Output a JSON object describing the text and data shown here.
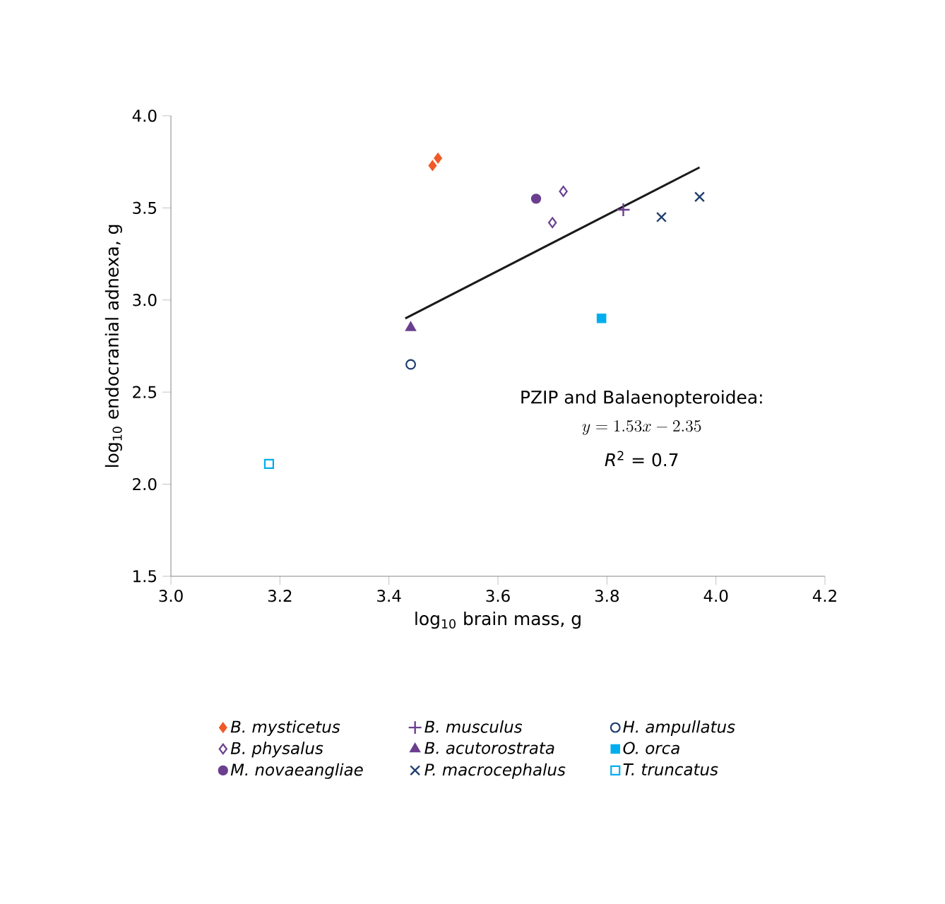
{
  "chart_data": {
    "type": "scatter",
    "xlabel": "log$_{10}$ brain mass, g",
    "ylabel": "log$_{10}$ endocranial adnexa, g",
    "xlim": [
      3.0,
      4.2
    ],
    "xticks": [
      {
        "value": 3.0,
        "label": "3.0"
      },
      {
        "value": 3.2,
        "label": "3.2"
      },
      {
        "value": 3.4,
        "label": "3.4"
      },
      {
        "value": 3.6,
        "label": "3.6"
      },
      {
        "value": 3.8,
        "label": "3.8"
      },
      {
        "value": 4.0,
        "label": "4.0"
      },
      {
        "value": 4.2,
        "label": "4.2"
      }
    ],
    "ylim": [
      1.5,
      4.0
    ],
    "yticks": [
      {
        "value": 1.5,
        "label": "1.5"
      },
      {
        "value": 2.0,
        "label": "2.0"
      },
      {
        "value": 2.5,
        "label": "2.5"
      },
      {
        "value": 3.0,
        "label": "3.0"
      },
      {
        "value": 3.5,
        "label": "3.5"
      },
      {
        "value": 4.0,
        "label": "4.0"
      }
    ],
    "grid": false,
    "legend": "bottom",
    "annotations": [
      "PZIP and Balaenopteroidea:",
      "y = 1.53x - 2.35",
      "*R*$^{2}$ = 0.7"
    ],
    "series": [
      {
        "name": "*B. mysticetus*",
        "color": "#f05a28",
        "marker": "diamond",
        "x": [
          3.49,
          3.48
        ],
        "values": [
          3.77,
          3.73
        ]
      },
      {
        "name": "*B. musculus*",
        "color": "#6b3f8f",
        "marker": "plus",
        "x": [
          3.83
        ],
        "values": [
          3.49
        ]
      },
      {
        "name": "*H. ampullatus*",
        "color": "#1f3d6e",
        "marker": "circle open",
        "x": [
          3.44
        ],
        "values": [
          2.65
        ]
      },
      {
        "name": "*B. physalus*",
        "color": "#6b3f8f",
        "marker": "diamond open",
        "x": [
          3.72,
          3.7
        ],
        "values": [
          3.59,
          3.42
        ]
      },
      {
        "name": "*B. acutorostrata*",
        "color": "#6b3f8f",
        "marker": "triangle",
        "x": [
          3.44
        ],
        "values": [
          2.85
        ]
      },
      {
        "name": "*O. orca*",
        "color": "#00aeef",
        "marker": "square",
        "x": [
          3.79
        ],
        "values": [
          2.9
        ]
      },
      {
        "name": "*M. novaeangliae*",
        "color": "#6b3f8f",
        "marker": "circle",
        "x": [
          3.67
        ],
        "values": [
          3.55
        ]
      },
      {
        "name": "*P. macrocephalus*",
        "color": "#1f3d6e",
        "marker": "cross",
        "x": [
          3.9,
          3.97
        ],
        "values": [
          3.45,
          3.56
        ]
      },
      {
        "name": "*T. truncatus*",
        "color": "#00aeef",
        "marker": "square open",
        "x": [
          3.18
        ],
        "values": [
          2.11
        ]
      },
      {
        "type": "line",
        "color": "#1a1a1a",
        "marker": "none",
        "line_style": "solid",
        "x": [
          3.43,
          3.97
        ],
        "values": [
          2.9,
          3.72
        ]
      }
    ]
  }
}
